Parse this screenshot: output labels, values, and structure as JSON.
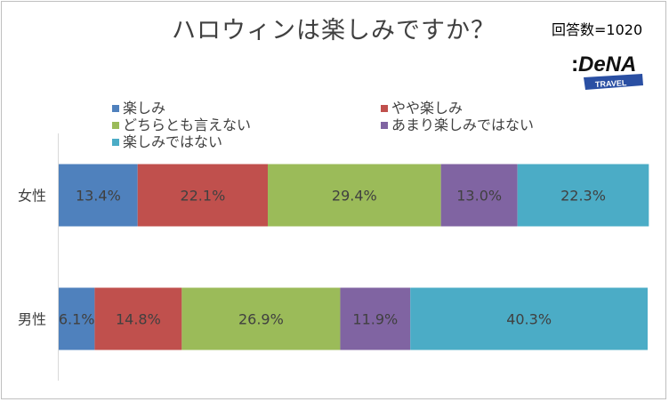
{
  "title": "ハロウィンは楽しみですか？",
  "respondents": "回答数=1020",
  "logo": {
    "brand": "DeNA",
    "sub": "TRAVEL"
  },
  "colors": {
    "series": [
      "#4f81bd",
      "#c0504d",
      "#9bbb59",
      "#8064a2",
      "#4bacc6"
    ],
    "axis": "#d9d9d9",
    "text": "#404040"
  },
  "chart_data": {
    "type": "bar",
    "orientation": "horizontal",
    "stacked": true,
    "categories": [
      "女性",
      "男性"
    ],
    "series": [
      {
        "name": "楽しみ",
        "values": [
          13.4,
          6.1
        ],
        "labels": [
          "13.4%",
          "6.1%"
        ]
      },
      {
        "name": "やや楽しみ",
        "values": [
          22.1,
          14.8
        ],
        "labels": [
          "22.1%",
          "14.8%"
        ]
      },
      {
        "name": "どちらとも言えない",
        "values": [
          29.4,
          26.9
        ],
        "labels": [
          "29.4%",
          "26.9%"
        ]
      },
      {
        "name": "あまり楽しみではない",
        "values": [
          13.0,
          11.9
        ],
        "labels": [
          "13.0%",
          "11.9%"
        ]
      },
      {
        "name": "楽しみではない",
        "values": [
          22.3,
          40.3
        ],
        "labels": [
          "22.3%",
          "40.3%"
        ]
      }
    ],
    "xlim": [
      0,
      100
    ],
    "legend": "top",
    "grid": false
  }
}
